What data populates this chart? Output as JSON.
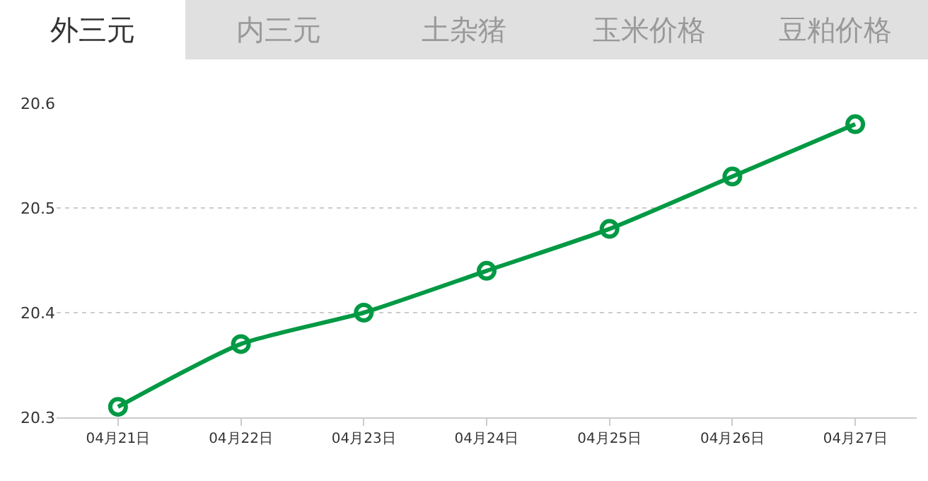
{
  "chart_data": {
    "type": "line",
    "annotations": [
      "外三元",
      "内三元",
      "土杂猪",
      "玉米价格",
      "豆粕价格"
    ],
    "categories": [
      "04月21日",
      "04月22日",
      "04月23日",
      "04月24日",
      "04月25日",
      "04月26日",
      "04月27日"
    ],
    "series": [
      {
        "color": "#009944",
        "values": [
          20.31,
          20.37,
          20.4,
          20.44,
          20.48,
          20.53,
          20.58
        ]
      }
    ],
    "ylim": [
      20.3,
      20.6
    ],
    "yticks": [
      20.3,
      20.4,
      20.5,
      20.6
    ],
    "grid": "y",
    "marker": "circle",
    "line_style": "solid"
  }
}
